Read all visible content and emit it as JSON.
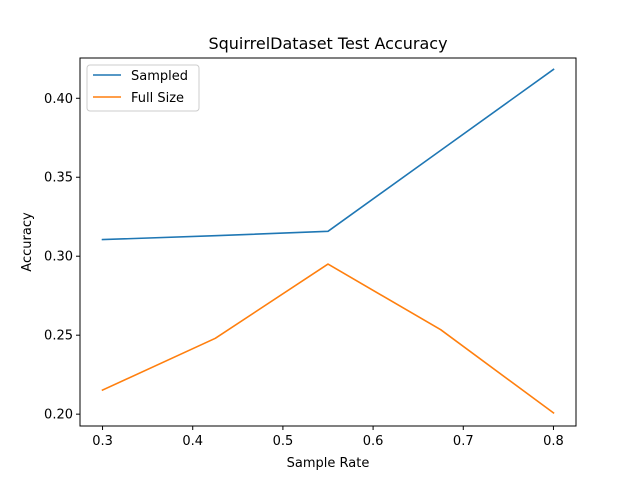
{
  "chart_data": {
    "type": "line",
    "title": "SquirrelDataset Test Accuracy",
    "xlabel": "Sample Rate",
    "ylabel": "Accuracy",
    "x": [
      0.3,
      0.425,
      0.55,
      0.675,
      0.8
    ],
    "xlim": [
      0.275,
      0.825
    ],
    "ylim": [
      0.1925,
      0.4255
    ],
    "xticks": [
      0.3,
      0.4,
      0.5,
      0.6,
      0.7,
      0.8
    ],
    "xtick_labels": [
      "0.3",
      "0.4",
      "0.5",
      "0.6",
      "0.7",
      "0.8"
    ],
    "yticks": [
      0.2,
      0.25,
      0.3,
      0.35,
      0.4
    ],
    "ytick_labels": [
      "0.20",
      "0.25",
      "0.30",
      "0.35",
      "0.40"
    ],
    "grid": false,
    "legend_position": "top-left",
    "series": [
      {
        "name": "Sampled",
        "color": "#1f77b4",
        "values": [
          0.3105,
          0.313,
          0.3158,
          0.367,
          0.4183
        ]
      },
      {
        "name": "Full Size",
        "color": "#ff7f0e",
        "values": [
          0.2152,
          0.248,
          0.295,
          0.2535,
          0.2008
        ]
      }
    ]
  }
}
